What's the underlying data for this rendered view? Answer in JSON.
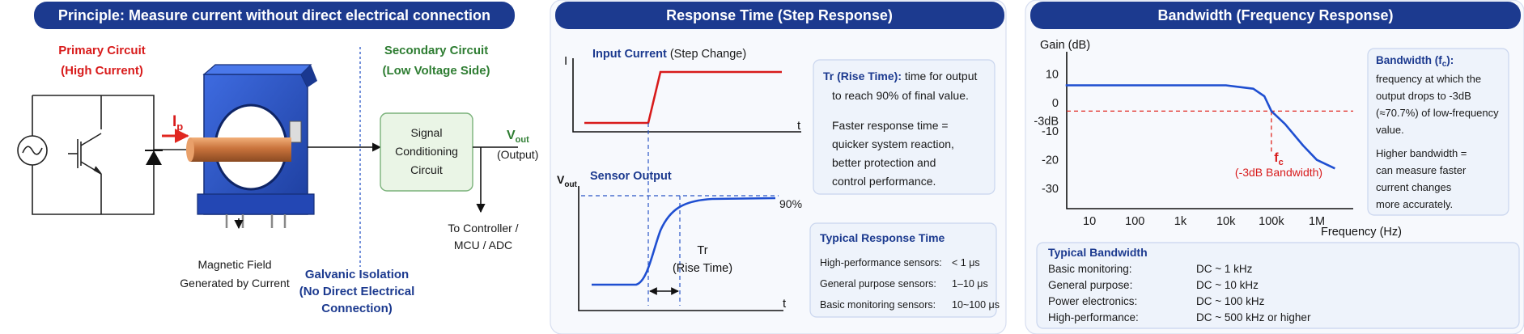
{
  "panel1": {
    "header": "Principle: Measure current without direct electrical connection",
    "primary_line1": "Primary Circuit",
    "primary_line2": "(High Current)",
    "secondary_line1": "Secondary Circuit",
    "secondary_line2": "(Low Voltage Side)",
    "ip_main": "I",
    "ip_sub": "p",
    "signal_box_line1": "Signal",
    "signal_box_line2": "Conditioning",
    "signal_box_line3": "Circuit",
    "vout_main": "V",
    "vout_sub": "out",
    "vout_note": "(Output)",
    "controller_line1": "To Controller /",
    "controller_line2": "MCU / ADC",
    "magnetic_line1": "Magnetic Field",
    "magnetic_line2": "Generated by Current",
    "isolation_line1": "Galvanic Isolation",
    "isolation_line2": "(No Direct Electrical",
    "isolation_line3": "Connection)"
  },
  "panel2": {
    "header": "Response Time (Step Response)",
    "input_axis_label": "I",
    "input_title_bold": "Input Current",
    "input_title_rest": " (Step Change)",
    "time_label": "t",
    "output_axis_main": "V",
    "output_axis_sub": "out",
    "output_title": "Sensor Output",
    "ninety": "90%",
    "tr_label": "Tr",
    "tr_note": "(Rise Time)",
    "info1_bold": "Tr (Rise Time):",
    "info1_line1_rest": " time for output",
    "info1_line2": "to reach 90% of final value.",
    "info1_line3": "Faster response time =",
    "info1_line4": "quicker system reaction,",
    "info1_line5": "better protection and",
    "info1_line6": "control performance.",
    "typical_title": "Typical Response Time",
    "typical_rows": [
      {
        "label": "High-performance sensors:",
        "value": "< 1 μs"
      },
      {
        "label": "General purpose sensors:",
        "value": "1–10 μs"
      },
      {
        "label": "Basic monitoring sensors:",
        "value": "10~100 μs"
      }
    ]
  },
  "panel3": {
    "header": "Bandwidth (Frequency Response)",
    "info_title_main": "Bandwidth (f",
    "info_title_sub": "c",
    "info_title_end": "):",
    "info_lines": [
      "frequency at which the",
      "output drops to -3dB",
      "(≈70.7%) of low-frequency",
      "value."
    ],
    "info_lines2": [
      "Higher bandwidth =",
      "can measure faster",
      "current changes",
      "more accurately."
    ],
    "fc_main": "f",
    "fc_sub": "c",
    "fc_note": "(-3dB Bandwidth)",
    "minus3_label": "-3dB",
    "typical_title": "Typical Bandwidth",
    "typical_rows": [
      {
        "label": "Basic monitoring:",
        "value": "DC ~ 1 kHz"
      },
      {
        "label": "General purpose:",
        "value": "DC ~ 10 kHz"
      },
      {
        "label": "Power electronics:",
        "value": "DC ~ 100 kHz"
      },
      {
        "label": "High-performance:",
        "value": "DC ~ 500 kHz or higher"
      }
    ]
  },
  "chart_data": {
    "type": "line",
    "ylabel": "Gain (dB)",
    "xlabel": "Frequency (Hz)",
    "x_ticks": [
      "10",
      "100",
      "1k",
      "10k",
      "100k",
      "1M"
    ],
    "y_ticks": [
      "10",
      "0",
      "-10",
      "-20",
      "-30"
    ],
    "ylim": [
      -37,
      16
    ],
    "x_log10_range": [
      0.5,
      6.8
    ],
    "series": [
      {
        "x": [
          3,
          10,
          100,
          1000,
          10000,
          40000,
          70000,
          100000,
          200000,
          500000,
          1000000,
          2500000
        ],
        "y": [
          6,
          6,
          6,
          6,
          6,
          4.8,
          2.2,
          -3,
          -7.5,
          -15,
          -20,
          -23
        ]
      }
    ],
    "cutoff_x": 100000,
    "cutoff_y": -3
  },
  "colors": {
    "header_bg": "#1c3a8f",
    "primary_red": "#d81b1b",
    "secondary_green": "#2e7d32",
    "curve_blue": "#1f4fd1",
    "info_bg": "#eef3fb",
    "signal_box_bg": "#eaf5e6"
  }
}
